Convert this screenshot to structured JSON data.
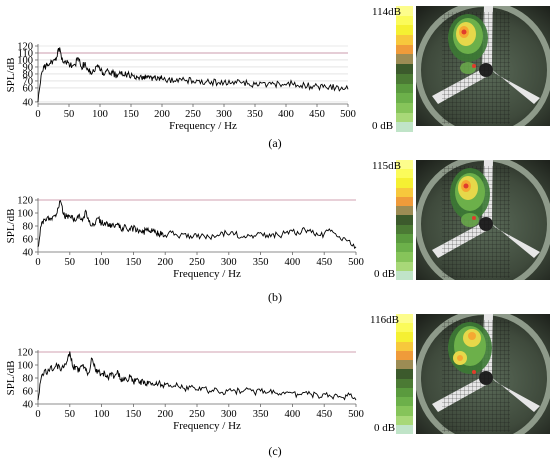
{
  "panels": [
    {
      "caption": "(a)",
      "db_max": "114dB",
      "db_min": "0 dB",
      "chart_data": {
        "type": "line",
        "xlabel": "Frequency / Hz",
        "ylabel": "SPL/dB",
        "xlim": [
          0,
          500
        ],
        "ylim": [
          37,
          120
        ],
        "xticks": [
          "0",
          "50",
          "100",
          "150",
          "200",
          "250",
          "300",
          "350",
          "400",
          "450",
          "500"
        ],
        "yticks": [
          "40",
          "60",
          "70",
          "80",
          "90",
          "100",
          "110",
          "120"
        ],
        "ref_line": 110,
        "grid": true,
        "x": [
          0,
          5,
          10,
          15,
          20,
          25,
          30,
          35,
          40,
          45,
          50,
          55,
          60,
          65,
          70,
          75,
          80,
          85,
          90,
          95,
          100,
          105,
          110,
          115,
          120,
          125,
          130,
          135,
          140,
          145,
          150,
          155,
          160,
          165,
          170,
          175,
          180,
          185,
          190,
          195,
          200,
          210,
          220,
          230,
          240,
          250,
          260,
          270,
          280,
          290,
          300,
          310,
          320,
          330,
          340,
          350,
          360,
          370,
          380,
          390,
          400,
          410,
          420,
          430,
          440,
          450,
          460,
          470,
          480,
          490,
          500
        ],
        "values": [
          40,
          78,
          90,
          92,
          95,
          100,
          104,
          118,
          97,
          96,
          95,
          91,
          93,
          103,
          90,
          94,
          88,
          83,
          84,
          91,
          85,
          82,
          84,
          80,
          82,
          78,
          80,
          84,
          78,
          80,
          76,
          78,
          75,
          77,
          73,
          76,
          74,
          75,
          72,
          74,
          73,
          72,
          70,
          73,
          71,
          70,
          71,
          68,
          69,
          67,
          68,
          66,
          67,
          68,
          66,
          65,
          67,
          64,
          66,
          65,
          64,
          66,
          63,
          64,
          62,
          63,
          61,
          62,
          60,
          61,
          58
        ]
      }
    },
    {
      "caption": "(b)",
      "db_max": "115dB",
      "db_min": "0 dB",
      "chart_data": {
        "type": "line",
        "xlabel": "Frequency / Hz",
        "ylabel": "SPL/dB",
        "xlim": [
          0,
          500
        ],
        "ylim": [
          40,
          120
        ],
        "xticks": [
          "0",
          "50",
          "100",
          "150",
          "200",
          "250",
          "300",
          "350",
          "400",
          "450",
          "500"
        ],
        "yticks": [
          "40",
          "60",
          "80",
          "100",
          "120"
        ],
        "ref_line": 120,
        "grid": false,
        "x": [
          0,
          5,
          10,
          15,
          20,
          25,
          30,
          35,
          40,
          45,
          50,
          55,
          60,
          65,
          70,
          75,
          80,
          85,
          90,
          95,
          100,
          105,
          110,
          115,
          120,
          125,
          130,
          135,
          140,
          145,
          150,
          155,
          160,
          165,
          170,
          175,
          180,
          185,
          190,
          195,
          200,
          210,
          220,
          230,
          240,
          250,
          260,
          270,
          280,
          290,
          300,
          310,
          320,
          330,
          340,
          350,
          360,
          370,
          380,
          390,
          400,
          410,
          420,
          430,
          440,
          450,
          460,
          470,
          480,
          490,
          500
        ],
        "values": [
          48,
          80,
          90,
          94,
          92,
          96,
          100,
          119,
          98,
          94,
          96,
          90,
          89,
          98,
          88,
          104,
          86,
          80,
          82,
          92,
          84,
          86,
          79,
          82,
          78,
          84,
          76,
          78,
          75,
          74,
          77,
          72,
          74,
          70,
          73,
          71,
          72,
          70,
          68,
          70,
          66,
          70,
          64,
          68,
          65,
          63,
          66,
          62,
          64,
          70,
          66,
          68,
          63,
          67,
          65,
          70,
          66,
          68,
          64,
          70,
          72,
          68,
          74,
          70,
          66,
          68,
          72,
          64,
          62,
          58,
          48
        ]
      }
    },
    {
      "caption": "(c)",
      "db_max": "116dB",
      "db_min": "0 dB",
      "chart_data": {
        "type": "line",
        "xlabel": "Frequency / Hz",
        "ylabel": "SPL/dB",
        "xlim": [
          0,
          500
        ],
        "ylim": [
          40,
          120
        ],
        "xticks": [
          "0",
          "50",
          "100",
          "150",
          "200",
          "250",
          "300",
          "350",
          "400",
          "450",
          "500"
        ],
        "yticks": [
          "40",
          "60",
          "80",
          "100",
          "120"
        ],
        "ref_line": 120,
        "grid": false,
        "x": [
          0,
          5,
          10,
          15,
          20,
          25,
          30,
          35,
          40,
          45,
          50,
          55,
          60,
          65,
          70,
          75,
          80,
          85,
          90,
          95,
          100,
          105,
          110,
          115,
          120,
          125,
          130,
          135,
          140,
          145,
          150,
          155,
          160,
          165,
          170,
          175,
          180,
          185,
          190,
          195,
          200,
          210,
          220,
          230,
          240,
          250,
          260,
          270,
          280,
          290,
          300,
          310,
          320,
          330,
          340,
          350,
          360,
          370,
          380,
          390,
          400,
          410,
          420,
          430,
          440,
          450,
          460,
          470,
          480,
          490,
          500
        ],
        "values": [
          46,
          80,
          92,
          88,
          98,
          94,
          100,
          92,
          96,
          104,
          121,
          96,
          98,
          90,
          100,
          92,
          88,
          110,
          94,
          90,
          86,
          88,
          80,
          84,
          82,
          92,
          78,
          80,
          76,
          82,
          74,
          78,
          72,
          76,
          70,
          74,
          72,
          70,
          73,
          68,
          70,
          66,
          68,
          64,
          66,
          62,
          65,
          60,
          64,
          58,
          62,
          60,
          59,
          63,
          58,
          60,
          57,
          61,
          56,
          58,
          57,
          54,
          58,
          55,
          53,
          56,
          52,
          54,
          50,
          54,
          46
        ]
      }
    }
  ],
  "colorbar": [
    "#fdfd8c",
    "#fbfb5a",
    "#f5f032",
    "#f7c83c",
    "#ef9b3a",
    "#9c8c54",
    "#3c5a2c",
    "#4b7a34",
    "#5a9a3e",
    "#6cb04a",
    "#86c45a",
    "#a8d878",
    "#c0e4c8"
  ],
  "colors": {
    "trace": "#000000",
    "ref_line": "#c08098",
    "grid": "#d4d4d4"
  }
}
